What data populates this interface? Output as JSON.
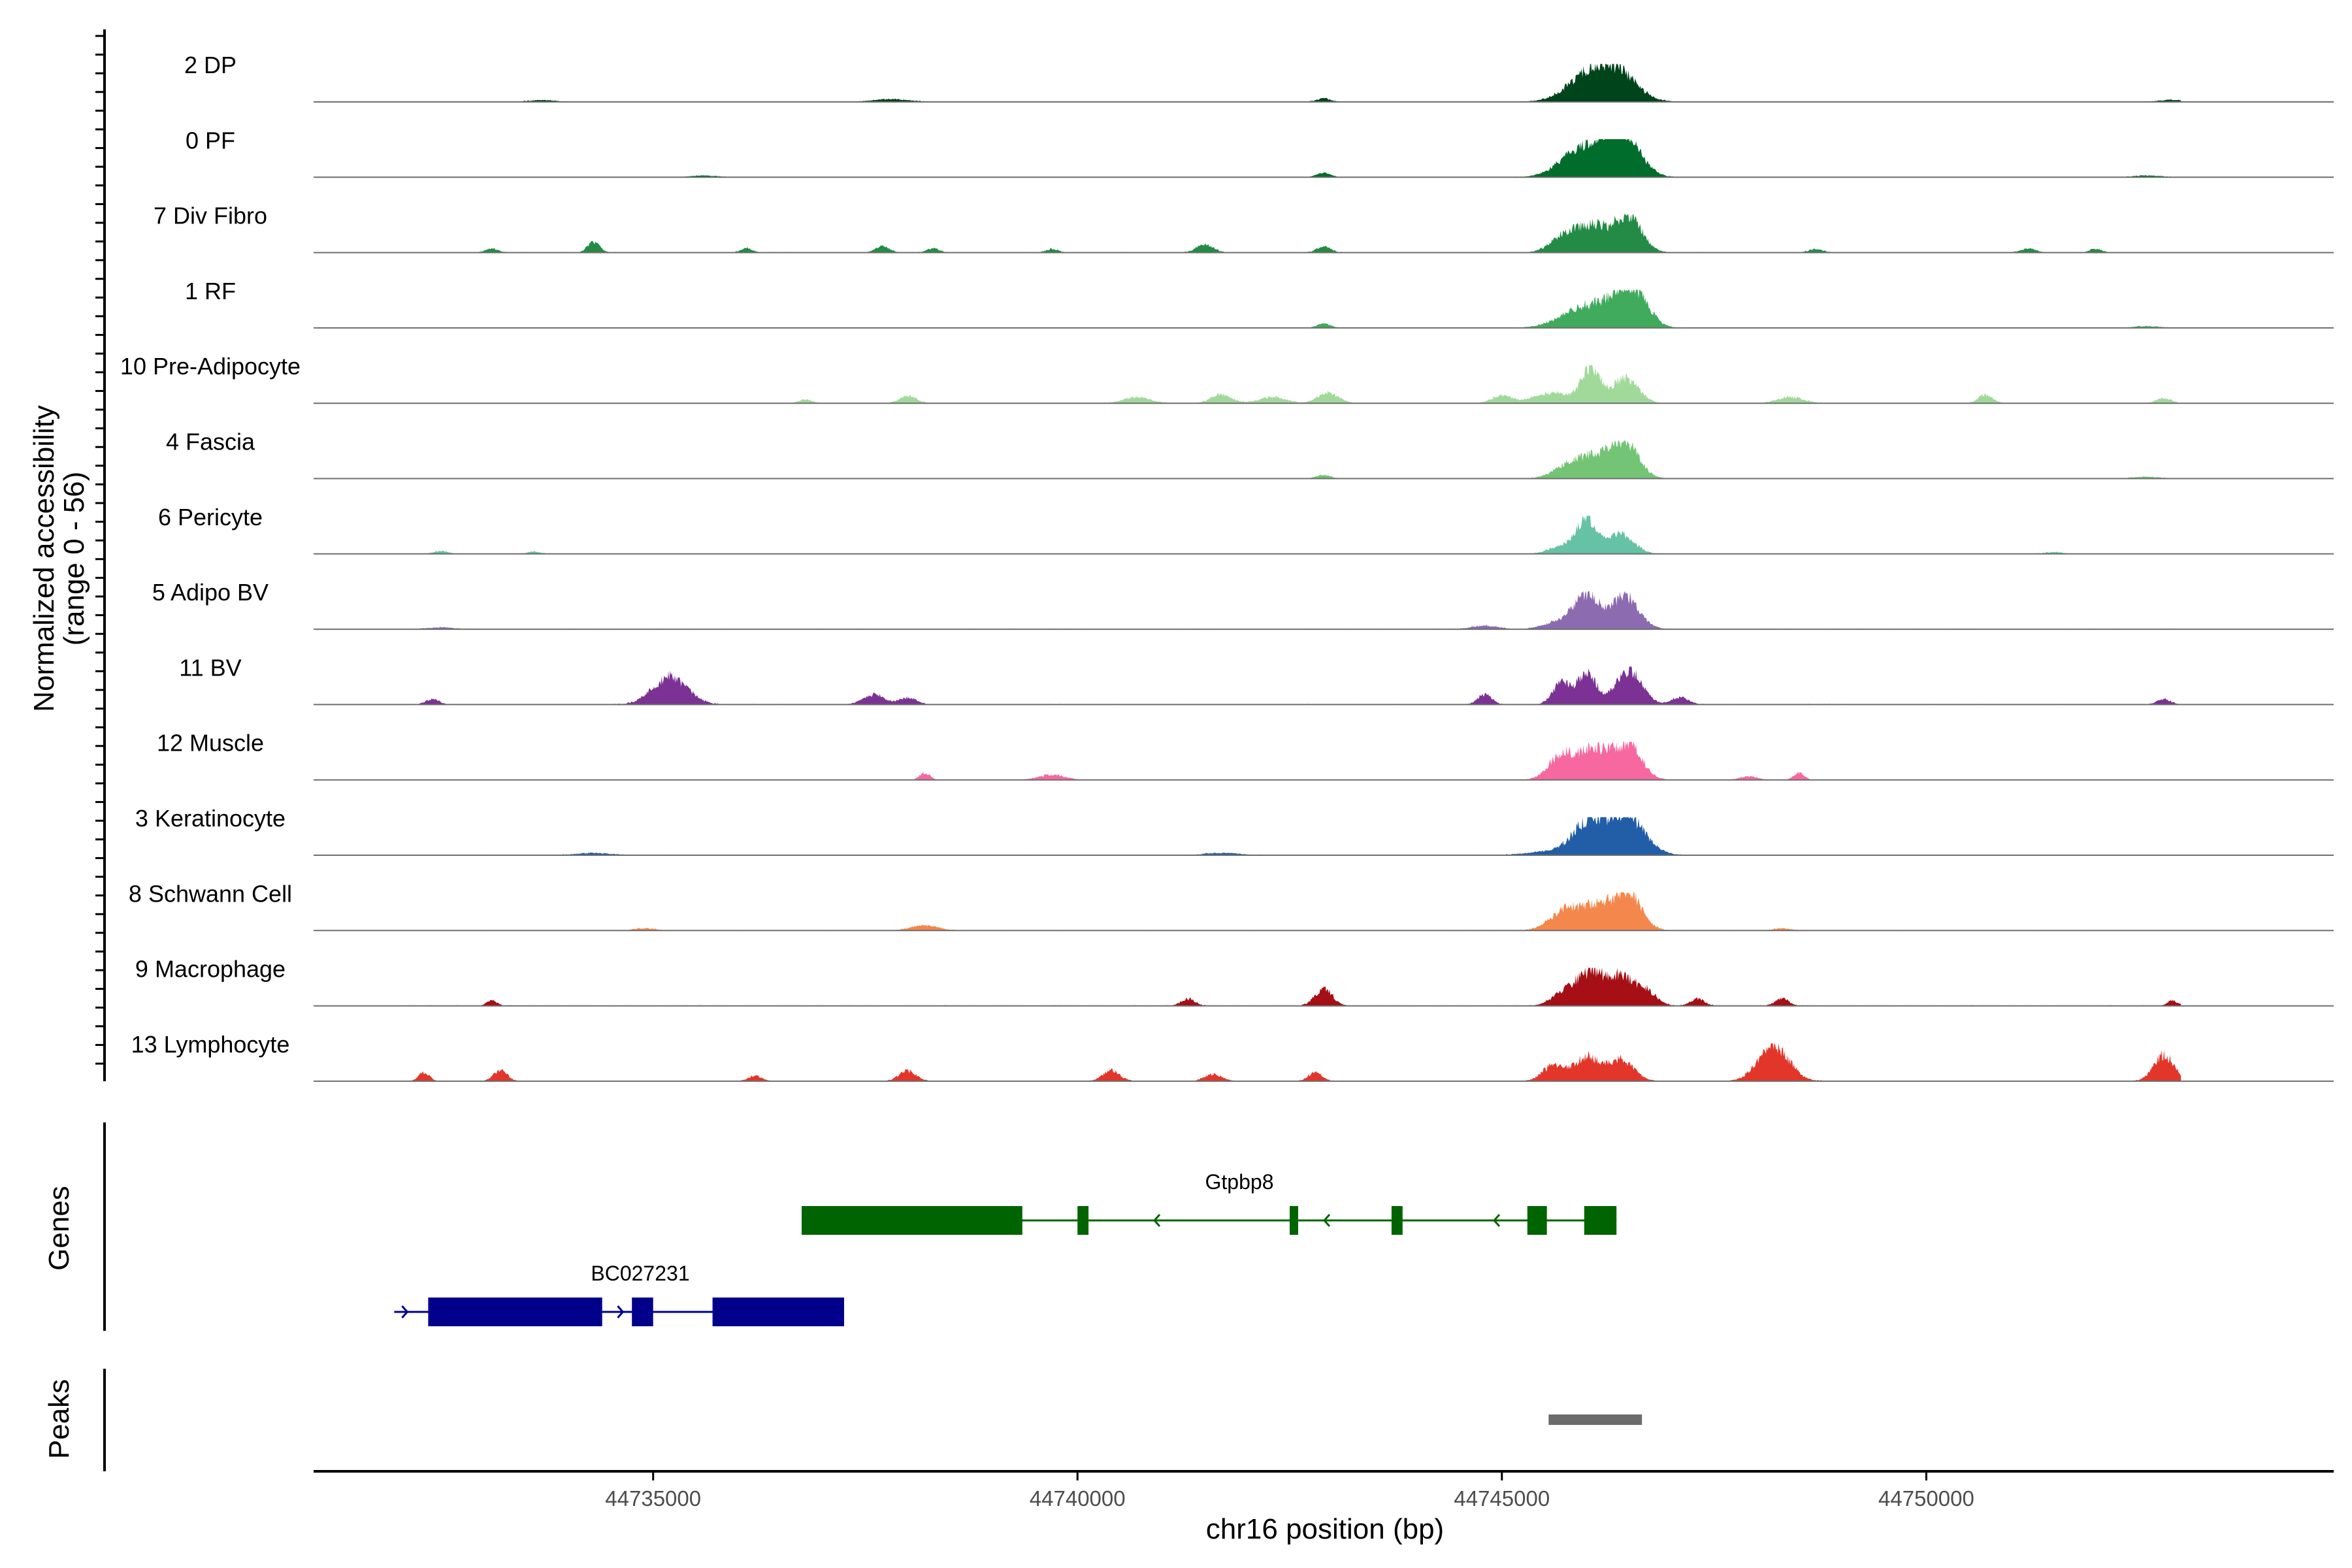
{
  "chart_data": {
    "type": "area",
    "title": "",
    "ylabel_lines": [
      "Normalized accessibility",
      "(range 0 - 56)"
    ],
    "y_range": [
      0,
      56
    ],
    "xlabel": "chr16 position (bp)",
    "xlim": [
      44731000,
      44754800
    ],
    "x_ticks": [
      44735000,
      44740000,
      44745000,
      44750000
    ],
    "x_tick_labels": [
      "44735000",
      "44740000",
      "44745000",
      "44750000"
    ],
    "tracks": [
      {
        "name": "2 DP",
        "color": "#00441b",
        "peaks": [
          [
            44746050,
            0.85,
            260
          ],
          [
            44746400,
            0.6,
            220
          ],
          [
            44742900,
            0.1,
            80
          ],
          [
            44733700,
            0.05,
            150
          ],
          [
            44737800,
            0.08,
            200
          ],
          [
            44752900,
            0.06,
            150
          ]
        ],
        "noise": 0.04
      },
      {
        "name": "0 PF",
        "color": "#006d2c",
        "peaks": [
          [
            44746100,
            0.9,
            250
          ],
          [
            44746450,
            1.0,
            190
          ],
          [
            44745750,
            0.25,
            200
          ],
          [
            44742900,
            0.12,
            80
          ],
          [
            44735600,
            0.05,
            150
          ],
          [
            44752600,
            0.05,
            150
          ]
        ],
        "noise": 0.04
      },
      {
        "name": "7 Div Fibro",
        "color": "#238b45",
        "peaks": [
          [
            44746050,
            0.8,
            220
          ],
          [
            44746500,
            1.0,
            150
          ],
          [
            44745700,
            0.3,
            150
          ],
          [
            44733100,
            0.12,
            70
          ],
          [
            44734300,
            0.3,
            70
          ],
          [
            44736100,
            0.12,
            70
          ],
          [
            44737700,
            0.18,
            80
          ],
          [
            44738300,
            0.12,
            70
          ],
          [
            44739700,
            0.1,
            70
          ],
          [
            44741500,
            0.22,
            100
          ],
          [
            44742900,
            0.18,
            80
          ],
          [
            44748700,
            0.1,
            80
          ],
          [
            44751200,
            0.12,
            80
          ],
          [
            44752000,
            0.1,
            70
          ]
        ],
        "noise": 0.05
      },
      {
        "name": "1 RF",
        "color": "#41ab5d",
        "peaks": [
          [
            44745900,
            0.45,
            250
          ],
          [
            44746250,
            0.5,
            220
          ],
          [
            44746550,
            1.0,
            170
          ],
          [
            44742900,
            0.12,
            80
          ],
          [
            44752600,
            0.05,
            150
          ]
        ],
        "noise": 0.04
      },
      {
        "name": "10 Pre-Adipocyte",
        "color": "#a1d99b",
        "peaks": [
          [
            44746050,
            1.0,
            110
          ],
          [
            44746450,
            0.72,
            150
          ],
          [
            44745600,
            0.3,
            220
          ],
          [
            44742950,
            0.3,
            120
          ],
          [
            44741700,
            0.25,
            120
          ],
          [
            44740700,
            0.18,
            150
          ],
          [
            44742300,
            0.18,
            150
          ],
          [
            44738000,
            0.2,
            100
          ],
          [
            44745000,
            0.2,
            120
          ],
          [
            44750700,
            0.25,
            80
          ],
          [
            44748400,
            0.18,
            150
          ],
          [
            44752800,
            0.15,
            80
          ],
          [
            44736800,
            0.1,
            80
          ]
        ],
        "noise": 0.05
      },
      {
        "name": "4 Fascia",
        "color": "#74c476",
        "peaks": [
          [
            44746050,
            0.65,
            210
          ],
          [
            44746450,
            1.0,
            160
          ],
          [
            44745700,
            0.2,
            150
          ],
          [
            44742900,
            0.1,
            80
          ],
          [
            44752600,
            0.05,
            150
          ]
        ],
        "noise": 0.04
      },
      {
        "name": "6 Pericyte",
        "color": "#66c2a4",
        "peaks": [
          [
            44746000,
            1.0,
            120
          ],
          [
            44746400,
            0.6,
            150
          ],
          [
            44745700,
            0.2,
            150
          ],
          [
            44732500,
            0.08,
            80
          ],
          [
            44733600,
            0.06,
            80
          ],
          [
            44751500,
            0.05,
            100
          ]
        ],
        "noise": 0.04
      },
      {
        "name": "5 Adipo BV",
        "color": "#8c6bb1",
        "peaks": [
          [
            44746000,
            1.0,
            150
          ],
          [
            44746450,
            0.95,
            160
          ],
          [
            44745650,
            0.2,
            160
          ],
          [
            44744800,
            0.1,
            150
          ],
          [
            44732500,
            0.05,
            150
          ]
        ],
        "noise": 0.05
      },
      {
        "name": "11 BV",
        "color": "#7b3294",
        "peaks": [
          [
            44746000,
            0.85,
            120
          ],
          [
            44746500,
            1.0,
            150
          ],
          [
            44745700,
            0.6,
            100
          ],
          [
            44735200,
            0.8,
            200
          ],
          [
            44737600,
            0.3,
            120
          ],
          [
            44738000,
            0.2,
            100
          ],
          [
            44744800,
            0.3,
            80
          ],
          [
            44747100,
            0.2,
            100
          ],
          [
            44752800,
            0.15,
            80
          ],
          [
            44732400,
            0.15,
            80
          ]
        ],
        "noise": 0.06
      },
      {
        "name": "12 Muscle",
        "color": "#f768a1",
        "peaks": [
          [
            44745700,
            0.7,
            150
          ],
          [
            44746100,
            0.9,
            180
          ],
          [
            44746500,
            1.0,
            150
          ],
          [
            44738200,
            0.2,
            60
          ],
          [
            44739700,
            0.15,
            150
          ],
          [
            44747900,
            0.1,
            100
          ],
          [
            44748500,
            0.2,
            60
          ]
        ],
        "noise": 0.03
      },
      {
        "name": "3 Keratinocyte",
        "color": "#225ea8",
        "peaks": [
          [
            44746050,
            1.0,
            200
          ],
          [
            44746500,
            1.0,
            200
          ],
          [
            44745550,
            0.1,
            250
          ],
          [
            44734300,
            0.06,
            200
          ],
          [
            44741700,
            0.06,
            200
          ]
        ],
        "noise": 0.05
      },
      {
        "name": "8 Schwann Cell",
        "color": "#f4874b",
        "peaks": [
          [
            44745750,
            0.55,
            180
          ],
          [
            44746150,
            0.7,
            200
          ],
          [
            44746500,
            1.0,
            150
          ],
          [
            44738200,
            0.15,
            150
          ],
          [
            44734900,
            0.06,
            120
          ],
          [
            44748300,
            0.06,
            100
          ]
        ],
        "noise": 0.05
      },
      {
        "name": "9 Macrophage",
        "color": "#a50f15",
        "peaks": [
          [
            44745750,
            0.4,
            150
          ],
          [
            44746050,
            0.9,
            150
          ],
          [
            44746400,
            0.85,
            150
          ],
          [
            44746700,
            0.4,
            120
          ],
          [
            44742900,
            0.5,
            100
          ],
          [
            44741300,
            0.2,
            80
          ],
          [
            44733100,
            0.15,
            60
          ],
          [
            44752900,
            0.15,
            60
          ],
          [
            44747300,
            0.2,
            80
          ],
          [
            44748300,
            0.2,
            80
          ]
        ],
        "noise": 0.06
      },
      {
        "name": "13 Lymphocyte",
        "color": "#e3362b",
        "peaks": [
          [
            44748200,
            1.0,
            180
          ],
          [
            44746000,
            0.7,
            150
          ],
          [
            44746400,
            0.6,
            150
          ],
          [
            44745600,
            0.45,
            120
          ],
          [
            44752800,
            0.75,
            120
          ],
          [
            44733200,
            0.3,
            80
          ],
          [
            44740400,
            0.3,
            100
          ],
          [
            44738000,
            0.3,
            100
          ],
          [
            44732300,
            0.25,
            60
          ],
          [
            44742800,
            0.25,
            80
          ],
          [
            44741600,
            0.2,
            100
          ],
          [
            44736200,
            0.15,
            80
          ]
        ],
        "noise": 0.05
      }
    ],
    "genes_panel_label": "Genes",
    "genes": [
      {
        "name": "Gtpbp8",
        "strand": "-",
        "color": "#006400",
        "start": 44736750,
        "end": 44746350,
        "exons": [
          [
            44736750,
            44739350
          ],
          [
            44740000,
            44740130
          ],
          [
            44742500,
            44742600
          ],
          [
            44743700,
            44743830
          ],
          [
            44745300,
            44745530
          ],
          [
            44745970,
            44746350
          ]
        ]
      },
      {
        "name": "BC027231",
        "strand": "+",
        "color": "#00008b",
        "start": 44731950,
        "end": 44737250,
        "exons": [
          [
            44732350,
            44734400
          ],
          [
            44734750,
            44735000
          ],
          [
            44735700,
            44737250
          ]
        ]
      }
    ],
    "peaks_panel_label": "Peaks",
    "peak_regions": [
      [
        44745550,
        44746650
      ]
    ],
    "peak_color": "#6b6b6b"
  }
}
